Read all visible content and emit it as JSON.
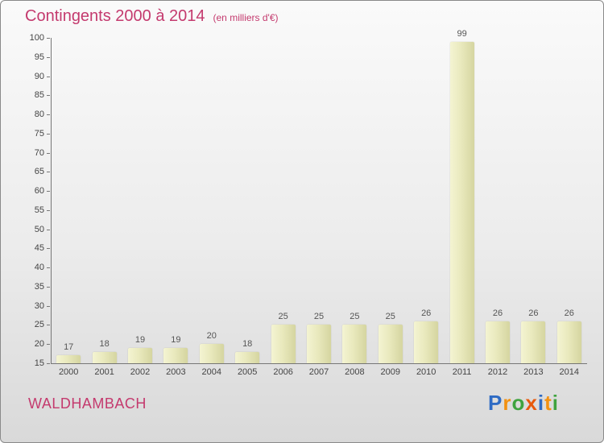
{
  "header": {
    "title": "Contingents 2000 à 2014",
    "subtitle": "(en milliers d'€)"
  },
  "footer": {
    "place": "WALDHAMBACH",
    "logo_letters": [
      {
        "char": "P",
        "color": "#2e6bc4"
      },
      {
        "char": "r",
        "color": "#f29111"
      },
      {
        "char": "o",
        "color": "#3fa33f"
      },
      {
        "char": "x",
        "color": "#e8590c"
      },
      {
        "char": "i",
        "color": "#2e6bc4"
      },
      {
        "char": "t",
        "color": "#f29111"
      },
      {
        "char": "i",
        "color": "#3fa33f"
      }
    ]
  },
  "colors": {
    "accent_pink": "#c43a6e",
    "bar_light": "#f4f4d2",
    "bar_dark": "#d5d5a0",
    "axis": "#777777",
    "tick_text": "#444444",
    "value_text": "#555555"
  },
  "chart_data": {
    "type": "bar",
    "title": "Contingents 2000 à 2014",
    "subtitle": "(en milliers d'€)",
    "categories": [
      "2000",
      "2001",
      "2002",
      "2003",
      "2004",
      "2005",
      "2006",
      "2007",
      "2008",
      "2009",
      "2010",
      "2011",
      "2012",
      "2013",
      "2014"
    ],
    "values": [
      17,
      18,
      19,
      19,
      20,
      18,
      25,
      25,
      25,
      25,
      26,
      99,
      26,
      26,
      26
    ],
    "xlabel": "",
    "ylabel": "",
    "ylim": [
      15,
      100
    ],
    "ytick_step": 5,
    "grid": false,
    "legend": false
  }
}
